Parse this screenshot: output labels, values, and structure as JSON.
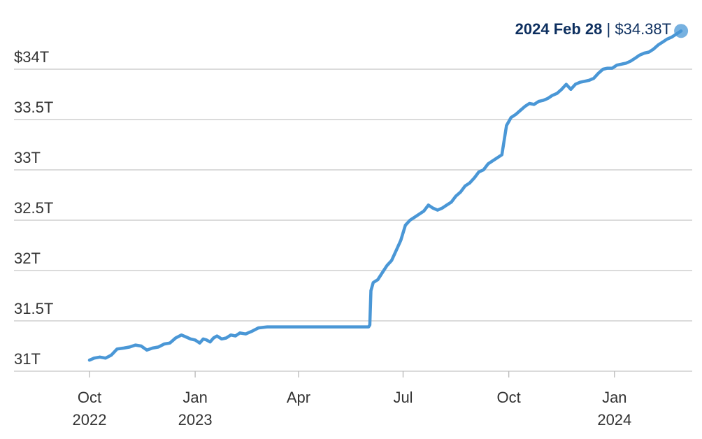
{
  "chart_data": {
    "type": "line",
    "title": "",
    "xlabel": "",
    "ylabel": "",
    "ylim": [
      31,
      34.4
    ],
    "grid": true,
    "y_ticks": [
      {
        "value": 31,
        "label": "31T"
      },
      {
        "value": 31.5,
        "label": "31.5T"
      },
      {
        "value": 32,
        "label": "32T"
      },
      {
        "value": 32.5,
        "label": "32.5T"
      },
      {
        "value": 33,
        "label": "33T"
      },
      {
        "value": 33.5,
        "label": "33.5T"
      },
      {
        "value": 34,
        "label": "$34T"
      }
    ],
    "x_ticks": [
      {
        "date": "2022-10-01",
        "label": "Oct",
        "year": "2022"
      },
      {
        "date": "2023-01-01",
        "label": "Jan",
        "year": "2023"
      },
      {
        "date": "2023-04-01",
        "label": "Apr",
        "year": ""
      },
      {
        "date": "2023-07-01",
        "label": "Jul",
        "year": ""
      },
      {
        "date": "2023-10-01",
        "label": "Oct",
        "year": ""
      },
      {
        "date": "2024-01-01",
        "label": "Jan",
        "year": "2024"
      }
    ],
    "annotation": {
      "date_label": "2024 Feb 28",
      "separator": " | ",
      "value_label": "$34.38T"
    },
    "series": [
      {
        "color": "#4a97d6",
        "points": [
          [
            "2022-10-01",
            31.11
          ],
          [
            "2022-10-05",
            31.13
          ],
          [
            "2022-10-10",
            31.14
          ],
          [
            "2022-10-15",
            31.13
          ],
          [
            "2022-10-20",
            31.16
          ],
          [
            "2022-10-25",
            31.22
          ],
          [
            "2022-10-31",
            31.23
          ],
          [
            "2022-11-05",
            31.24
          ],
          [
            "2022-11-10",
            31.26
          ],
          [
            "2022-11-15",
            31.25
          ],
          [
            "2022-11-20",
            31.21
          ],
          [
            "2022-11-25",
            31.23
          ],
          [
            "2022-11-30",
            31.24
          ],
          [
            "2022-12-05",
            31.27
          ],
          [
            "2022-12-10",
            31.28
          ],
          [
            "2022-12-15",
            31.33
          ],
          [
            "2022-12-20",
            31.36
          ],
          [
            "2022-12-24",
            31.34
          ],
          [
            "2022-12-28",
            31.32
          ],
          [
            "2023-01-01",
            31.31
          ],
          [
            "2023-01-05",
            31.28
          ],
          [
            "2023-01-08",
            31.32
          ],
          [
            "2023-01-11",
            31.31
          ],
          [
            "2023-01-14",
            31.29
          ],
          [
            "2023-01-17",
            31.33
          ],
          [
            "2023-01-20",
            31.35
          ],
          [
            "2023-01-24",
            31.32
          ],
          [
            "2023-01-28",
            31.33
          ],
          [
            "2023-02-01",
            31.36
          ],
          [
            "2023-02-05",
            31.35
          ],
          [
            "2023-02-09",
            31.38
          ],
          [
            "2023-02-14",
            31.37
          ],
          [
            "2023-02-20",
            31.4
          ],
          [
            "2023-02-25",
            31.43
          ],
          [
            "2023-03-05",
            31.44
          ],
          [
            "2023-03-15",
            31.44
          ],
          [
            "2023-04-01",
            31.44
          ],
          [
            "2023-04-15",
            31.44
          ],
          [
            "2023-05-01",
            31.44
          ],
          [
            "2023-05-15",
            31.44
          ],
          [
            "2023-06-01",
            31.44
          ],
          [
            "2023-06-02",
            31.46
          ],
          [
            "2023-06-03",
            31.8
          ],
          [
            "2023-06-05",
            31.88
          ],
          [
            "2023-06-09",
            31.91
          ],
          [
            "2023-06-13",
            31.98
          ],
          [
            "2023-06-17",
            32.05
          ],
          [
            "2023-06-21",
            32.1
          ],
          [
            "2023-06-25",
            32.2
          ],
          [
            "2023-06-29",
            32.3
          ],
          [
            "2023-07-03",
            32.45
          ],
          [
            "2023-07-07",
            32.5
          ],
          [
            "2023-07-11",
            32.53
          ],
          [
            "2023-07-15",
            32.56
          ],
          [
            "2023-07-19",
            32.59
          ],
          [
            "2023-07-23",
            32.65
          ],
          [
            "2023-07-27",
            32.62
          ],
          [
            "2023-07-31",
            32.6
          ],
          [
            "2023-08-04",
            32.62
          ],
          [
            "2023-08-08",
            32.65
          ],
          [
            "2023-08-12",
            32.68
          ],
          [
            "2023-08-16",
            32.74
          ],
          [
            "2023-08-20",
            32.78
          ],
          [
            "2023-08-24",
            32.84
          ],
          [
            "2023-08-28",
            32.87
          ],
          [
            "2023-09-01",
            32.92
          ],
          [
            "2023-09-05",
            32.98
          ],
          [
            "2023-09-09",
            33.0
          ],
          [
            "2023-09-13",
            33.06
          ],
          [
            "2023-09-17",
            33.09
          ],
          [
            "2023-09-21",
            33.12
          ],
          [
            "2023-09-25",
            33.15
          ],
          [
            "2023-09-29",
            33.44
          ],
          [
            "2023-10-03",
            33.52
          ],
          [
            "2023-10-07",
            33.55
          ],
          [
            "2023-10-11",
            33.59
          ],
          [
            "2023-10-15",
            33.63
          ],
          [
            "2023-10-19",
            33.66
          ],
          [
            "2023-10-23",
            33.65
          ],
          [
            "2023-10-27",
            33.68
          ],
          [
            "2023-10-31",
            33.69
          ],
          [
            "2023-11-04",
            33.71
          ],
          [
            "2023-11-08",
            33.74
          ],
          [
            "2023-11-12",
            33.76
          ],
          [
            "2023-11-16",
            33.8
          ],
          [
            "2023-11-20",
            33.85
          ],
          [
            "2023-11-24",
            33.8
          ],
          [
            "2023-11-28",
            33.85
          ],
          [
            "2023-12-02",
            33.87
          ],
          [
            "2023-12-06",
            33.88
          ],
          [
            "2023-12-10",
            33.89
          ],
          [
            "2023-12-14",
            33.91
          ],
          [
            "2023-12-18",
            33.96
          ],
          [
            "2023-12-22",
            34.0
          ],
          [
            "2023-12-26",
            34.01
          ],
          [
            "2023-12-30",
            34.01
          ],
          [
            "2024-01-03",
            34.04
          ],
          [
            "2024-01-07",
            34.05
          ],
          [
            "2024-01-11",
            34.06
          ],
          [
            "2024-01-15",
            34.08
          ],
          [
            "2024-01-19",
            34.11
          ],
          [
            "2024-01-23",
            34.14
          ],
          [
            "2024-01-27",
            34.16
          ],
          [
            "2024-01-31",
            34.17
          ],
          [
            "2024-02-04",
            34.2
          ],
          [
            "2024-02-08",
            34.24
          ],
          [
            "2024-02-12",
            34.27
          ],
          [
            "2024-02-16",
            34.3
          ],
          [
            "2024-02-20",
            34.32
          ],
          [
            "2024-02-24",
            34.35
          ],
          [
            "2024-02-28",
            34.38
          ]
        ]
      }
    ]
  }
}
